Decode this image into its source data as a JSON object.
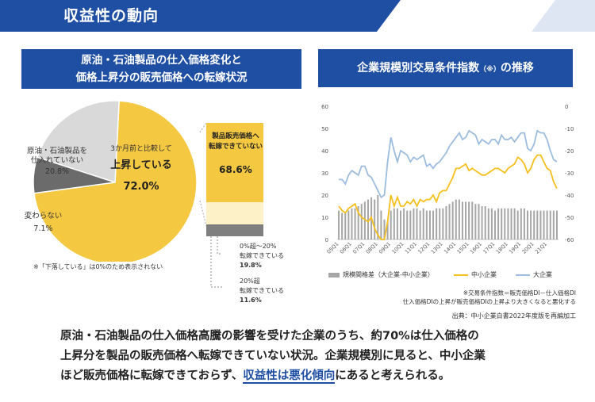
{
  "header": {
    "title": "収益性の動向"
  },
  "left_panel": {
    "title_line1": "原油・石油製品の仕入価格変化と",
    "title_line2": "価格上昇分の販売価格への転嫁状況",
    "pie": {
      "main_line1": "3か月前と比較して",
      "main_line2": "上昇している",
      "main_value": "72.0%",
      "no_buy_line1": "原油・石油製品を",
      "no_buy_line2": "仕入れていない",
      "no_buy_value": "20.8%",
      "unchanged_label": "変わらない",
      "unchanged_value": "7.1%",
      "footnote": "※「下落している」は0%のため表示されない"
    },
    "breakdown": {
      "cannot_line1": "製品販売価格へ",
      "cannot_line2": "転嫁できていない",
      "cannot_value": "68.6%",
      "partial_line1": "0%超～20%",
      "partial_line2": "転嫁できている",
      "partial_value": "19.8%",
      "over_line1": "20%超",
      "over_line2": "転嫁できている",
      "over_value": "11.6%"
    }
  },
  "right_panel": {
    "title": "企業規模別交易条件指数",
    "title_note": "（※）",
    "title_suffix": "の推移",
    "footnote_line1": "※交易条件指数＝販売価格DI－仕入価格DI",
    "footnote_line2": "仕入価格DIの上昇が販売価格DIの上昇より大きくなると悪化する",
    "source": "出典：中小企業白書2022年度版を再編加工"
  },
  "chart_data": {
    "type": "line",
    "title": "企業規模別交易条件指数（※）の推移",
    "x_tick_labels": [
      "05Q1",
      "06Q1",
      "07Q1",
      "08Q1",
      "09Q1",
      "10Q1",
      "11Q1",
      "12Q1",
      "13Q1",
      "14Q1",
      "15Q1",
      "16Q1",
      "17Q1",
      "18Q1",
      "19Q1",
      "20Q1",
      "21Q1"
    ],
    "left_axis": {
      "ticks": [
        "0",
        "10",
        "20",
        "30",
        "40",
        "50",
        "60"
      ],
      "ylim": [
        0,
        60
      ]
    },
    "right_axis": {
      "ticks": [
        "-60",
        "-50",
        "-40",
        "-30",
        "-20",
        "-10",
        "0"
      ],
      "ylim": [
        -60,
        0
      ]
    },
    "series": [
      {
        "name": "規模間格差（大企業-中小企業）",
        "type": "bar",
        "axis": "left",
        "color": "#a6a6a6",
        "values": [
          13,
          12,
          12,
          13,
          14,
          14,
          15,
          16,
          17,
          18,
          19,
          18,
          20,
          13,
          9,
          8,
          13,
          14,
          14,
          13,
          14,
          13,
          13,
          14,
          14,
          13,
          14,
          13,
          13,
          13,
          14,
          14,
          14,
          15,
          16,
          17,
          18,
          18,
          17,
          17,
          17,
          17,
          16,
          16,
          15,
          15,
          14,
          14,
          13,
          14,
          14,
          14,
          14,
          14,
          14,
          13,
          14,
          14,
          13,
          13,
          13,
          13,
          13,
          13,
          13,
          13,
          13,
          13
        ]
      },
      {
        "name": "中小企業",
        "type": "line",
        "axis": "right",
        "color": "#f5bf1e",
        "values": [
          -45,
          -47,
          -48,
          -46,
          -45,
          -44,
          -48,
          -50,
          -51,
          -52,
          -50,
          -55,
          -58,
          -60,
          -60,
          -52,
          -40,
          -45,
          -41,
          -45,
          -45,
          -43,
          -44,
          -42,
          -45,
          -42,
          -43,
          -42,
          -42,
          -40,
          -43,
          -39,
          -38,
          -38,
          -35,
          -32,
          -28,
          -28,
          -27,
          -26,
          -29,
          -28,
          -29,
          -30,
          -31,
          -31,
          -30,
          -29,
          -28,
          -28,
          -29,
          -30,
          -28,
          -27,
          -26,
          -23,
          -24,
          -26,
          -30,
          -28,
          -24,
          -22,
          -22,
          -25,
          -28,
          -29,
          -34,
          -37
        ]
      },
      {
        "name": "大企業",
        "type": "line",
        "axis": "right",
        "color": "#9cbcdf",
        "values": [
          -33,
          -33,
          -35,
          -31,
          -29,
          -30,
          -31,
          -27,
          -27,
          -31,
          -32,
          -35,
          -38,
          -41,
          -40,
          -25,
          -14,
          -20,
          -25,
          -20,
          -21,
          -22,
          -25,
          -23,
          -24,
          -23,
          -22,
          -27,
          -26,
          -28,
          -26,
          -25,
          -23,
          -21,
          -18,
          -16,
          -14,
          -12,
          -15,
          -14,
          -11,
          -12,
          -13,
          -17,
          -15,
          -16,
          -17,
          -15,
          -15,
          -17,
          -13,
          -15,
          -15,
          -14,
          -16,
          -14,
          -12,
          -12,
          -19,
          -20,
          -17,
          -11,
          -12,
          -12,
          -15,
          -20,
          -24,
          -25
        ]
      }
    ],
    "legend": [
      "規模間格差（大企業-中小企業）",
      "中小企業",
      "大企業"
    ],
    "legend_position": "bottom"
  },
  "bottom_text": {
    "line1": "原油・石油製品の仕入価格高騰の影響を受けた企業のうち、約70%は仕入価格の",
    "line2": "上昇分を製品の販売価格へ転嫁できていない状況。企業規模別に見ると、中小企業",
    "line3_pre": "ほど販売価格に転嫁できておらず、",
    "line3_highlight": "収益性は悪化傾向",
    "line3_post": "にあると考えられる。"
  },
  "colors": {
    "accent": "#1f4fa3",
    "pie_yellow": "#f5c842",
    "pie_light": "#d9d9d9",
    "pie_dark": "#6b6b6b"
  }
}
